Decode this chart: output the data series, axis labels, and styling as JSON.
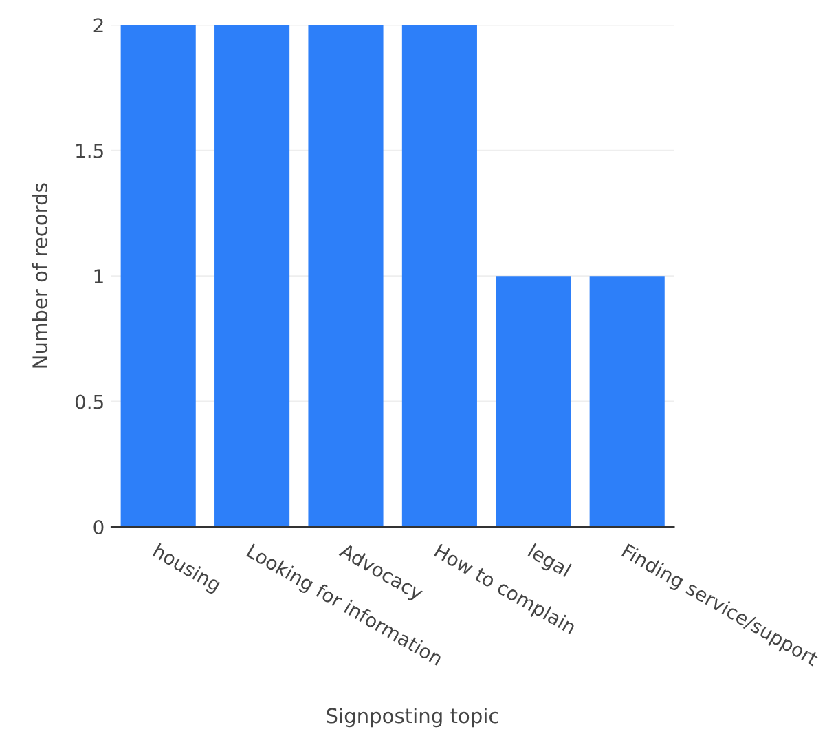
{
  "chart_data": {
    "type": "bar",
    "xlabel": "Signposting topic",
    "ylabel": "Number of records",
    "categories": [
      "housing",
      "Looking for information",
      "Advocacy",
      "How to complain",
      "legal",
      "Finding service/support"
    ],
    "values": [
      2,
      2,
      2,
      2,
      1,
      1
    ],
    "color": "#2d7ff9",
    "ylim": [
      0,
      2
    ],
    "yticks": [
      0,
      0.5,
      1,
      1.5,
      2
    ],
    "grid": "y"
  }
}
